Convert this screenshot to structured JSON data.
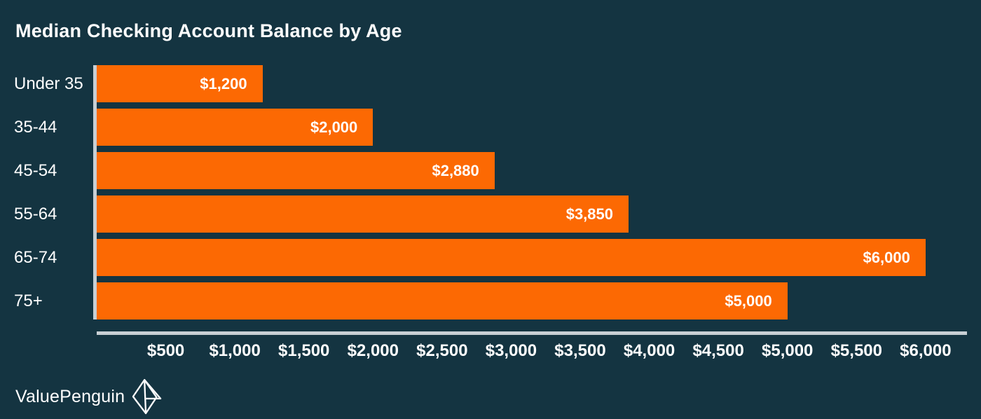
{
  "chart_data": {
    "type": "bar",
    "orientation": "horizontal",
    "title": "Median Checking Account Balance by Age",
    "categories": [
      "Under 35",
      "35-44",
      "45-54",
      "55-64",
      "65-74",
      "75+"
    ],
    "values": [
      1200,
      2000,
      2880,
      3850,
      6000,
      5000
    ],
    "value_labels": [
      "$1,200",
      "$2,000",
      "$2,880",
      "$3,850",
      "$6,000",
      "$5,000"
    ],
    "xlabel": "",
    "ylabel": "",
    "xlim": [
      0,
      6300
    ],
    "x_ticks": [
      {
        "value": 500,
        "label": "$500"
      },
      {
        "value": 1000,
        "label": "$1,000"
      },
      {
        "value": 1500,
        "label": "$1,500"
      },
      {
        "value": 2000,
        "label": "$2,000"
      },
      {
        "value": 2500,
        "label": "$2,500"
      },
      {
        "value": 3000,
        "label": "$3,000"
      },
      {
        "value": 3500,
        "label": "$3,500"
      },
      {
        "value": 4000,
        "label": "$4,000"
      },
      {
        "value": 4500,
        "label": "$4,500"
      },
      {
        "value": 5000,
        "label": "$5,000"
      },
      {
        "value": 5500,
        "label": "$5,500"
      },
      {
        "value": 6000,
        "label": "$6,000"
      }
    ],
    "grid": false,
    "legend": false,
    "value_label_position": "inside-end",
    "bar_color": "#fc6903",
    "background_color": "#143441",
    "axis_color": "#c8cfd4",
    "text_color": "#ffffff"
  },
  "brand": {
    "name": "ValuePenguin",
    "icon": "origami-penguin-icon"
  }
}
